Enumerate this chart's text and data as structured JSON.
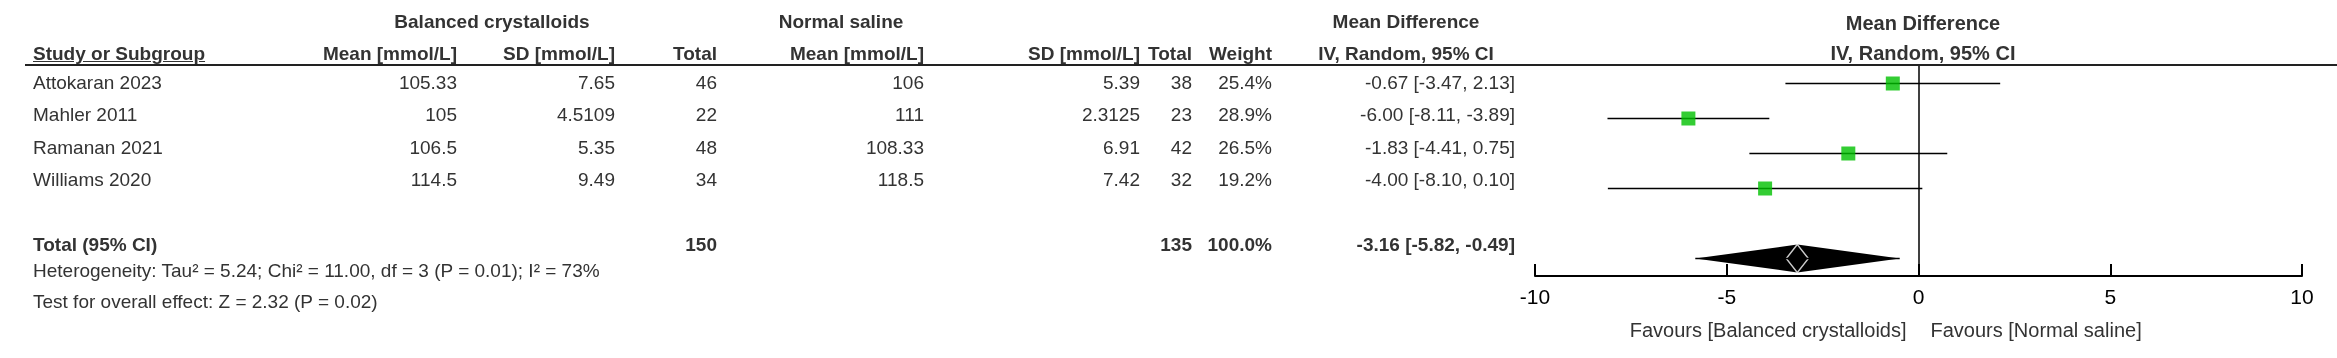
{
  "chart_data": [
    {
      "type": "other",
      "ylabel": "Study or Subgroup",
      "categories": [
        "Attokaran 2023",
        "Mahler 2011",
        "Ramanan 2021",
        "Williams 2020",
        null,
        "Total (95% CI)"
      ],
      "series": [
        {
          "name": "Mean [mmol/L]",
          "values": [
            105.33,
            105,
            106.5,
            114.5,
            null,
            null
          ],
          "value_labels": [
            "105.33",
            "105",
            "106.5",
            "114.5",
            null,
            null
          ]
        },
        {
          "name": "SD [mmol/L]",
          "values": [
            7.65,
            4.5109,
            5.35,
            9.49,
            null,
            null
          ],
          "value_labels": [
            "7.65",
            "4.5109",
            "5.35",
            "9.49",
            null,
            null
          ]
        },
        {
          "name": "Total",
          "values": [
            46,
            22,
            48,
            34,
            null,
            150
          ],
          "value_labels": [
            "46",
            "22",
            "48",
            "34",
            null,
            "150"
          ]
        },
        {
          "name": "Mean [mmol/L]",
          "values": [
            106,
            111,
            108.33,
            118.5,
            null,
            null
          ],
          "value_labels": [
            "106",
            "111",
            "108.33",
            "118.5",
            null,
            null
          ]
        },
        {
          "name": "SD [mmol/L]",
          "values": [
            5.39,
            2.3125,
            6.91,
            7.42,
            null,
            null
          ],
          "value_labels": [
            "5.39",
            "2.3125",
            "6.91",
            "7.42",
            null,
            null
          ]
        },
        {
          "name": "Total",
          "values": [
            38,
            23,
            42,
            32,
            null,
            135
          ],
          "value_labels": [
            "38",
            "23",
            "42",
            "32",
            null,
            "135"
          ]
        },
        {
          "name": "Weight",
          "values": [
            25.4,
            28.9,
            26.5,
            19.2,
            null,
            100.0
          ],
          "value_labels": [
            "25.4%",
            "28.9%",
            "26.5%",
            "19.2%",
            null,
            "100.0%"
          ]
        },
        {
          "name": "Mean Difference\nIV, Random, 95% CI",
          "values": [
            -0.67,
            -6.0,
            -1.83,
            -4.0,
            null,
            -3.16
          ],
          "value_labels": [
            "-0.67 [-3.47, 2.13]",
            "-6.00 [-8.11, -3.89]",
            "-1.83 [-4.41, 0.75]",
            "-4.00 [-8.10, 0.10]",
            null,
            "-3.16 [-5.82, -0.49]"
          ]
        }
      ],
      "annotations": [
        "Balanced crystalloids",
        "Normal saline",
        "Heterogeneity: Tau² = 5.24; Chi² = 11.00, df = 3 (P = 0.01); I² = 73%",
        "Test for overall effect: Z = 2.32 (P = 0.02)"
      ]
    },
    {
      "type": "scatter",
      "title": "Mean Difference",
      "subtitle": "IV, Random, 95% CI",
      "orientation": "horizontal",
      "categories": [
        null,
        null,
        null,
        null,
        null,
        null
      ],
      "xlim": [
        -10,
        10
      ],
      "xticks": [
        -10,
        -5,
        0,
        5,
        10
      ],
      "series": [
        {
          "color": "#00c000",
          "marker": "square",
          "values": [
            -0.67,
            -6.0,
            -1.83,
            -4.0,
            null,
            null
          ],
          "errors": [
            [
              -3.47,
              2.13
            ],
            [
              -8.11,
              -3.89
            ],
            [
              -4.41,
              0.75
            ],
            [
              -8.1,
              0.1
            ],
            null,
            null
          ]
        },
        {
          "color": "#000000",
          "marker": "diamond",
          "values": [
            null,
            null,
            null,
            null,
            null,
            -3.16
          ],
          "errors": [
            null,
            null,
            null,
            null,
            null,
            [
              -5.82,
              -0.49
            ]
          ]
        }
      ],
      "ref_lines": [
        {
          "axis": "x",
          "value": 0,
          "color": "#000000"
        }
      ],
      "annotations": [
        "Favours [Balanced crystalloids]",
        "Favours [Normal saline]"
      ]
    }
  ]
}
